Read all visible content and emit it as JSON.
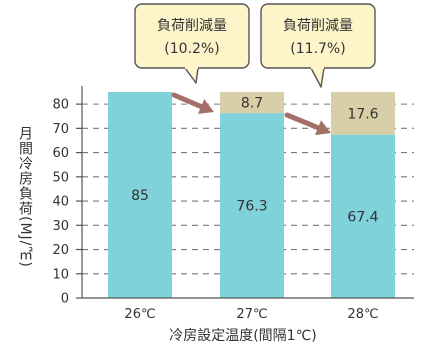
{
  "chart_data": {
    "type": "bar",
    "categories": [
      "26℃",
      "27℃",
      "28℃"
    ],
    "series": [
      {
        "name": "",
        "values": [
          85,
          76.3,
          67.4
        ],
        "color": "#7fd1da"
      },
      {
        "name": "",
        "values": [
          0,
          8.7,
          17.6
        ],
        "color": "#d8cfa8"
      }
    ],
    "xlabel": "冷房設定温度(間隔1℃)",
    "ylabel": "月間冷房負荷(MJ/㎡)",
    "ylim": [
      0,
      85
    ],
    "yticks": [
      0,
      10,
      20,
      30,
      40,
      50,
      60,
      70,
      80
    ],
    "grid": true,
    "colors": {
      "callout_fill": "#fdf5c9",
      "callout_border": "#555555",
      "arrow": "#a37067",
      "axis": "#555555",
      "grid": "#777777"
    },
    "annotations": [
      {
        "title": "負荷削減量",
        "value": "(10.2%)"
      },
      {
        "title": "負荷削減量",
        "value": "(11.7%)"
      }
    ]
  }
}
